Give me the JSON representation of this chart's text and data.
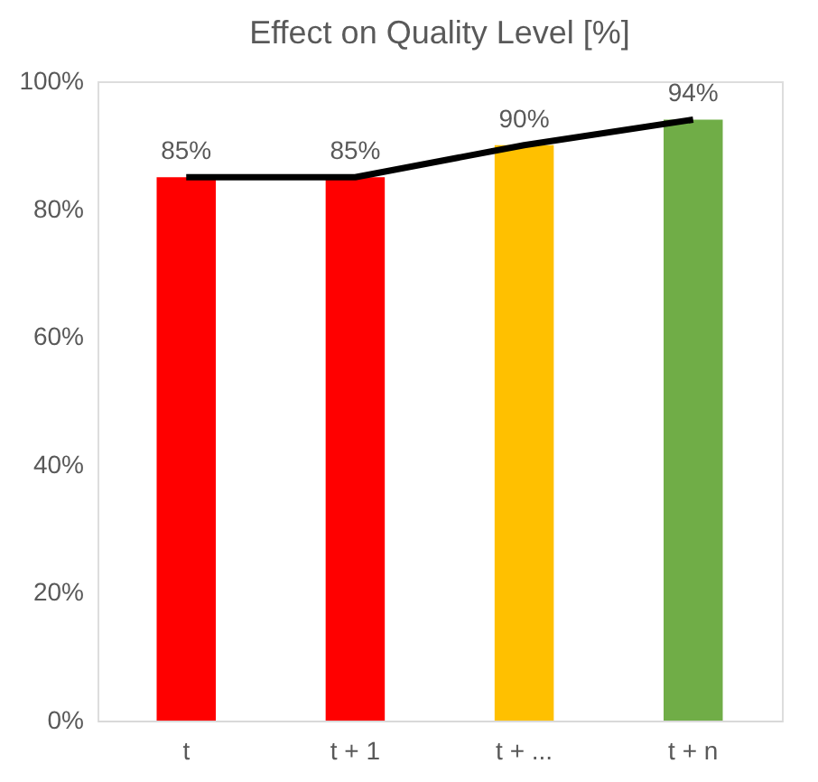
{
  "chart_data": {
    "type": "bar",
    "title": "Effect on Quality Level [%]",
    "categories": [
      "t",
      "t + 1",
      "t + ...",
      "t + n"
    ],
    "series": [
      {
        "colors": [
          "#ff0000",
          "#ff0000",
          "#ffc000",
          "#70ad47"
        ],
        "values": [
          85,
          85,
          90,
          94
        ],
        "value_labels": [
          "85%",
          "85%",
          "90%",
          "94%"
        ]
      },
      {
        "type": "line",
        "color": "#000000",
        "values": [
          85,
          85,
          90,
          94
        ]
      }
    ],
    "ylim": [
      0,
      100
    ],
    "yticks": [
      {
        "value": 0,
        "label": "0%"
      },
      {
        "value": 20,
        "label": "20%"
      },
      {
        "value": 40,
        "label": "40%"
      },
      {
        "value": 60,
        "label": "60%"
      },
      {
        "value": 80,
        "label": "80%"
      },
      {
        "value": 100,
        "label": "100%"
      }
    ],
    "grid": false
  }
}
